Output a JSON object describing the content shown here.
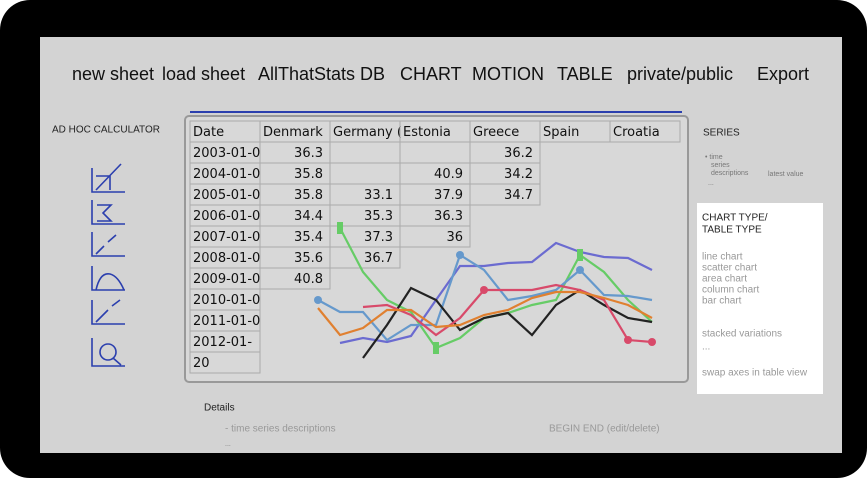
{
  "menu": [
    "new sheet",
    "load sheet",
    "AllThatStats DB",
    "CHART",
    "MOTION",
    "TABLE",
    "private/public",
    "Export"
  ],
  "calculator": {
    "title": "AD HOC CALCULATOR"
  },
  "table": {
    "header": [
      "Date",
      "Denmark",
      "Germany (",
      "Estonia",
      "Greece",
      "Spain",
      "Croatia"
    ],
    "rows": [
      [
        "2003-01-0",
        "36.3",
        "",
        "",
        "36.2"
      ],
      [
        "2004-01-0",
        "35.8",
        "",
        "40.9",
        "34.2"
      ],
      [
        "2005-01-0",
        "35.8",
        "33.1",
        "37.9",
        "34.7"
      ],
      [
        "2006-01-0",
        "34.4",
        "35.3",
        "36.3"
      ],
      [
        "2007-01-0",
        "35.4",
        "37.3",
        "36"
      ],
      [
        "2008-01-0",
        "35.6",
        "36.7"
      ],
      [
        "2009-01-0",
        "40.8"
      ],
      [
        "2010-01-0"
      ],
      [
        "2011-01-0"
      ],
      [
        "2012-01-"
      ],
      [
        "20"
      ]
    ]
  },
  "series_panel": {
    "title": "SERIES",
    "bullet": [
      "• time",
      "series",
      "descriptions"
    ],
    "latest": "latest value",
    "more": "..."
  },
  "chart_type_panel": {
    "title": [
      "CHART TYPE/",
      "TABLE TYPE"
    ],
    "items": [
      "line chart",
      "scatter chart",
      "area chart",
      "column chart",
      "bar chart"
    ],
    "stacked": "stacked variations",
    "more": "...",
    "swap": "swap axes in table view"
  },
  "details": {
    "title": "Details",
    "item": "- time series descriptions",
    "more": "...",
    "actions": "BEGIN   END  (edit/delete)"
  }
}
